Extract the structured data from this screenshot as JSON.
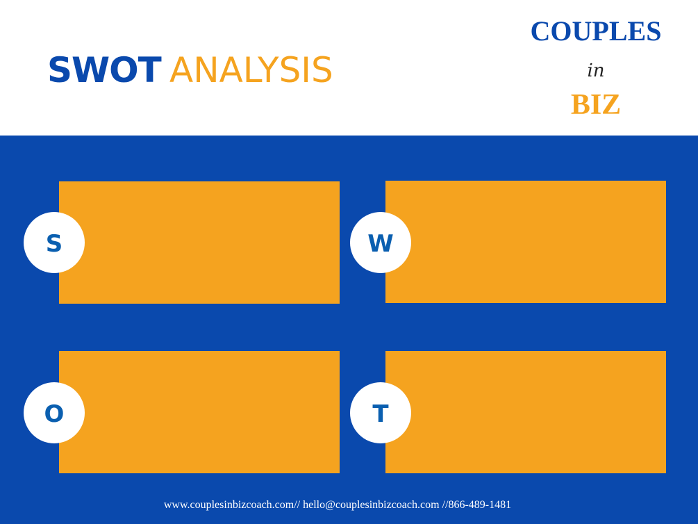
{
  "header": {
    "title_part1": "SWOT",
    "title_part2": "ANALYSIS"
  },
  "logo": {
    "line1": "COUPLES",
    "line2": "in",
    "line3": "BIZ"
  },
  "quadrants": [
    {
      "letter": "S"
    },
    {
      "letter": "W"
    },
    {
      "letter": "O"
    },
    {
      "letter": "T"
    }
  ],
  "footer": {
    "text": "www.couplesinbizcoach.com// hello@couplesinbizcoach.com //866-489-1481"
  }
}
